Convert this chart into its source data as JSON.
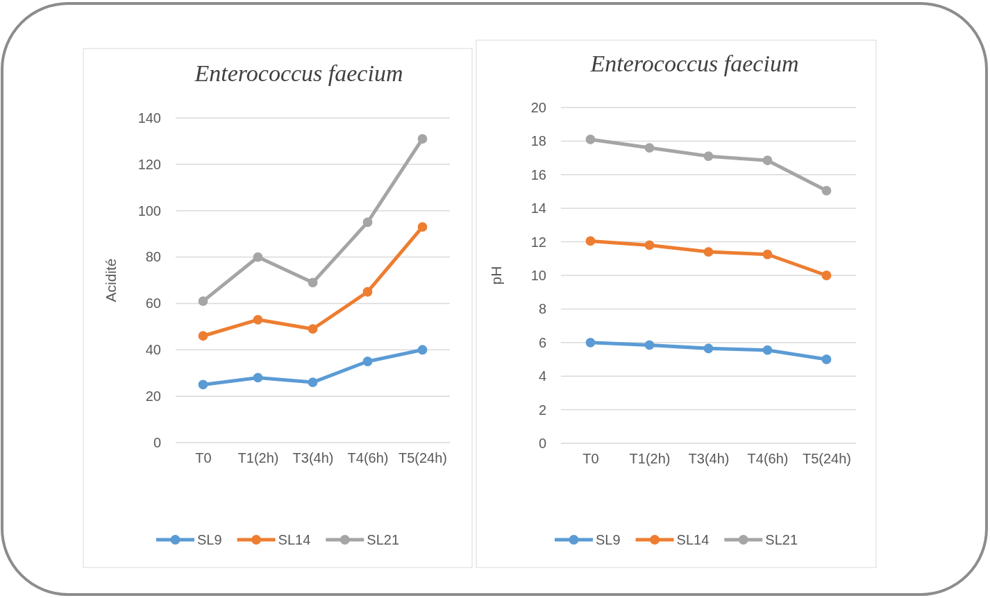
{
  "chart_data": [
    {
      "type": "line",
      "title": "Enterococcus faecium",
      "ylabel": "Acidité",
      "categories": [
        "T0",
        "T1(2h)",
        "T3(4h)",
        "T4(6h)",
        "T5(24h)"
      ],
      "series": [
        {
          "name": "SL9",
          "color": "#5b9bd5",
          "values": [
            25,
            28,
            26,
            35,
            40
          ]
        },
        {
          "name": "SL14",
          "color": "#ed7d31",
          "values": [
            46,
            53,
            49,
            65,
            93
          ]
        },
        {
          "name": "SL21",
          "color": "#a5a5a5",
          "values": [
            61,
            80,
            69,
            95,
            131
          ]
        }
      ],
      "ylim": [
        0,
        140
      ],
      "yticks": [
        0,
        20,
        40,
        60,
        80,
        100,
        120,
        140
      ],
      "grid": "y",
      "legend": "bottom",
      "marker": "circle",
      "line_style": "solid"
    },
    {
      "type": "line",
      "title": "Enterococcus faecium",
      "ylabel": "pH",
      "categories": [
        "T0",
        "T1(2h)",
        "T3(4h)",
        "T4(6h)",
        "T5(24h)"
      ],
      "series": [
        {
          "name": "SL9",
          "color": "#5b9bd5",
          "values": [
            6,
            5.85,
            5.65,
            5.55,
            5
          ]
        },
        {
          "name": "SL14",
          "color": "#ed7d31",
          "values": [
            12.05,
            11.8,
            11.4,
            11.25,
            10
          ]
        },
        {
          "name": "SL21",
          "color": "#a5a5a5",
          "values": [
            18.1,
            17.6,
            17.1,
            16.85,
            15.05
          ]
        }
      ],
      "ylim": [
        0,
        20
      ],
      "yticks": [
        0,
        2,
        4,
        6,
        8,
        10,
        12,
        14,
        16,
        18,
        20
      ],
      "grid": "y",
      "legend": "bottom",
      "marker": "circle",
      "line_style": "solid"
    }
  ]
}
